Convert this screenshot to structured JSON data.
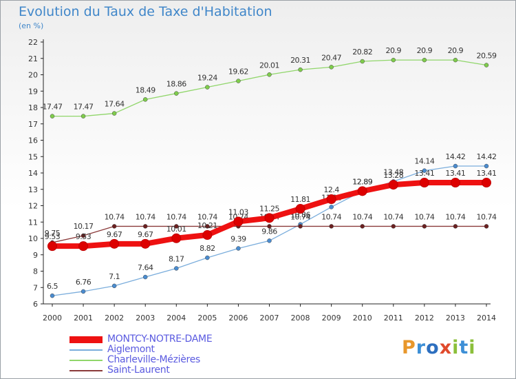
{
  "header": {
    "title": "Evolution du Taux de Taxe d'Habitation",
    "subtitle": "(en %)"
  },
  "logo": {
    "text": "Proxiti",
    "letters": [
      {
        "ch": "P",
        "color": "#e8972b"
      },
      {
        "ch": "r",
        "color": "#3d8fd6"
      },
      {
        "ch": "o",
        "color": "#2d6fbf"
      },
      {
        "ch": "x",
        "color": "#e04a2c"
      },
      {
        "ch": "i",
        "color": "#8bbf3a"
      },
      {
        "ch": "t",
        "color": "#3d8fd6"
      },
      {
        "ch": "i",
        "color": "#8bbf3a"
      }
    ]
  },
  "chart_data": {
    "type": "line",
    "title": "Evolution du Taux de Taxe d'Habitation",
    "ylabel": "(en %)",
    "xlabel": "",
    "ylim": [
      6,
      22
    ],
    "y_ticks": [
      6,
      7,
      8,
      9,
      10,
      11,
      12,
      13,
      14,
      15,
      16,
      17,
      18,
      19,
      20,
      21,
      22
    ],
    "grid": false,
    "legend_placement": "bottom-left",
    "categories": [
      "2000",
      "2001",
      "2002",
      "2003",
      "2004",
      "2005",
      "2006",
      "2007",
      "2008",
      "2009",
      "2010",
      "2011",
      "2012",
      "2013",
      "2014"
    ],
    "series": [
      {
        "name": "Charleville-Mézières",
        "color": "#90d66a",
        "marker": "#7fcc4c",
        "width": 1.3,
        "values": [
          17.47,
          17.47,
          17.64,
          18.49,
          18.86,
          19.24,
          19.62,
          20.01,
          20.31,
          20.47,
          20.82,
          20.9,
          20.9,
          20.9,
          20.59
        ],
        "labels": [
          "17.47",
          "17.47",
          "17.64",
          "18.49",
          "18.86",
          "19.24",
          "19.62",
          "20.01",
          "20.31",
          "20.47",
          "20.82",
          "20.9",
          "20.9",
          "20.9",
          "20.59"
        ]
      },
      {
        "name": "Aiglemont",
        "color": "#7aaddc",
        "marker": "#4a8cd0",
        "width": 1.3,
        "values": [
          6.5,
          6.76,
          7.1,
          7.64,
          8.17,
          8.82,
          9.39,
          9.86,
          10.86,
          11.92,
          12.89,
          13.48,
          14.14,
          14.42,
          14.42
        ],
        "labels": [
          "6.5",
          "6.76",
          "7.1",
          "7.64",
          "8.17",
          "8.82",
          "9.39",
          "9.86",
          "10.86",
          "11.92",
          "12.89",
          "13.48",
          "14.14",
          "14.42",
          "14.42"
        ]
      },
      {
        "name": "Saint-Laurent",
        "color": "#8a3a3a",
        "marker": "#6b2020",
        "width": 1.3,
        "values": [
          9.75,
          10.17,
          10.74,
          10.74,
          10.74,
          10.74,
          10.74,
          10.74,
          10.74,
          10.74,
          10.74,
          10.74,
          10.74,
          10.74,
          10.74
        ],
        "labels": [
          "9.75",
          "10.17",
          "10.74",
          "10.74",
          "10.74",
          "10.74",
          "10.74",
          "10.74",
          "10.74",
          "10.74",
          "10.74",
          "10.74",
          "10.74",
          "10.74",
          "10.74"
        ]
      },
      {
        "name": "MONTCY-NOTRE-DAME",
        "color": "#ee1111",
        "marker": "#dd0000",
        "width": 8,
        "values": [
          9.53,
          9.53,
          9.67,
          9.67,
          10.01,
          10.21,
          11.03,
          11.25,
          11.81,
          12.4,
          12.89,
          13.28,
          13.41,
          13.41,
          13.41
        ],
        "labels": [
          "9.53",
          "9.53",
          "9.67",
          "9.67",
          "10.01",
          "10.21",
          "11.03",
          "11.25",
          "11.81",
          "12.4",
          "12.89",
          "13.28",
          "13.41",
          "13.41",
          "13.41"
        ]
      }
    ],
    "legend_order": [
      "MONTCY-NOTRE-DAME",
      "Aiglemont",
      "Charleville-Mézières",
      "Saint-Laurent"
    ]
  }
}
